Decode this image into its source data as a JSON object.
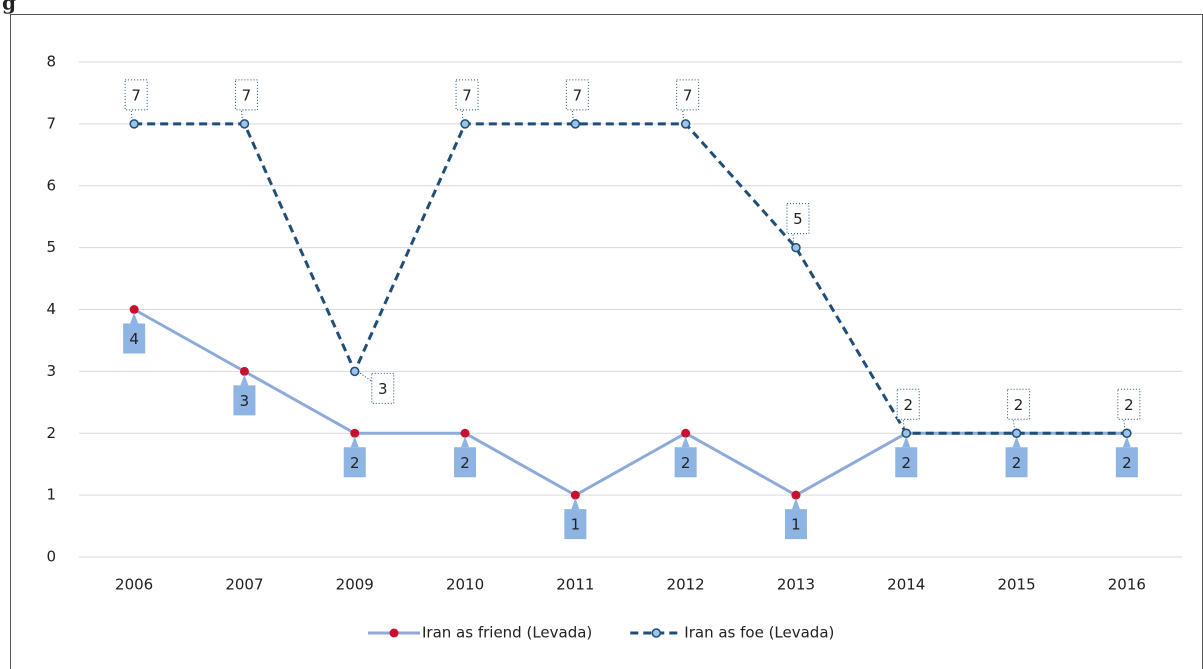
{
  "chart_data": {
    "type": "line",
    "title": "g",
    "categories": [
      "2006",
      "2007",
      "2009",
      "2010",
      "2011",
      "2012",
      "2013",
      "2014",
      "2015",
      "2016"
    ],
    "series": [
      {
        "name": "Iran as friend (Levada)",
        "color": "#8eaadb",
        "marker_color": "#c8102e",
        "values": [
          4,
          3,
          2,
          2,
          1,
          2,
          1,
          2,
          2,
          2
        ]
      },
      {
        "name": "Iran as foe (Levada)",
        "color": "#1f4e79",
        "marker_color": "#9dc3e6",
        "dashed": true,
        "values": [
          7,
          7,
          3,
          7,
          7,
          7,
          5,
          2,
          2,
          2
        ]
      }
    ],
    "ylim": [
      0,
      8
    ],
    "yticks": [
      0,
      1,
      2,
      3,
      4,
      5,
      6,
      7,
      8
    ],
    "grid": true,
    "legend": "bottom"
  }
}
